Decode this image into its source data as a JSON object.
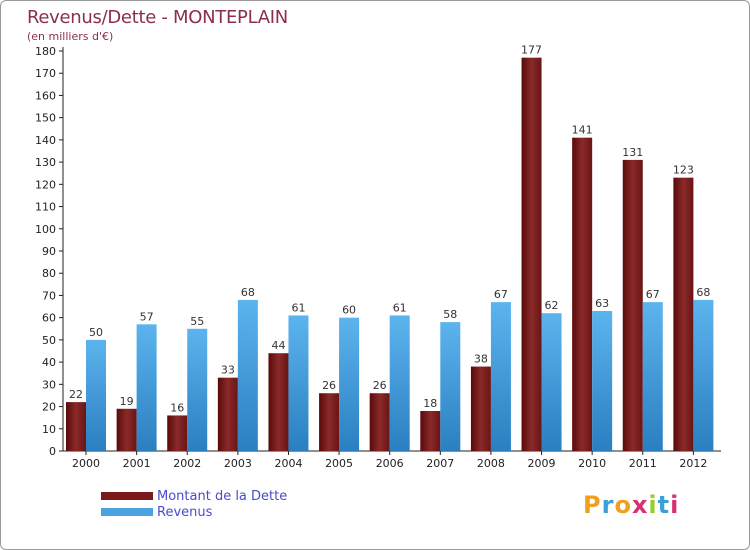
{
  "title": "Revenus/Dette - MONTEPLAIN",
  "subtitle": "(en milliers d'€)",
  "legend": [
    {
      "label": "Montant de la Dette",
      "color": "#7a1a1a"
    },
    {
      "label": "Revenus",
      "color": "#4aa3e0"
    }
  ],
  "logo": {
    "text": "Proxiti"
  },
  "chart_data": {
    "type": "bar",
    "categories": [
      "2000",
      "2001",
      "2002",
      "2003",
      "2004",
      "2005",
      "2006",
      "2007",
      "2008",
      "2009",
      "2010",
      "2011",
      "2012"
    ],
    "series": [
      {
        "name": "Montant de la Dette",
        "color": "#7a1a1a",
        "values": [
          22,
          19,
          16,
          33,
          44,
          26,
          26,
          18,
          38,
          177,
          141,
          131,
          123
        ]
      },
      {
        "name": "Revenus",
        "color": "#4aa3e0",
        "values": [
          50,
          57,
          55,
          68,
          61,
          60,
          61,
          58,
          67,
          62,
          63,
          67,
          68
        ]
      }
    ],
    "ylim": [
      0,
      180
    ],
    "yticks": [
      0,
      10,
      20,
      30,
      40,
      50,
      60,
      70,
      80,
      90,
      100,
      110,
      120,
      130,
      140,
      150,
      160,
      170,
      180
    ],
    "grid": false
  }
}
